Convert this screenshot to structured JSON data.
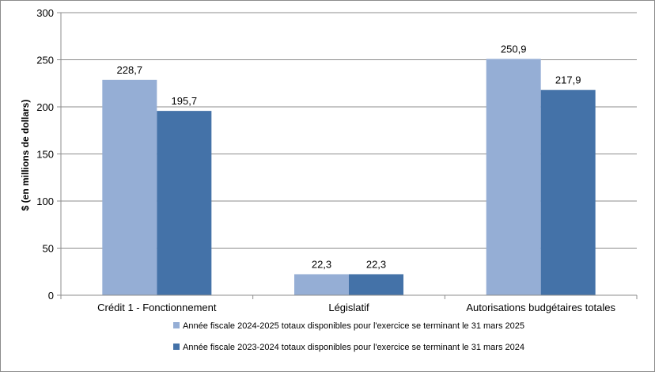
{
  "chart_data": {
    "type": "bar",
    "title": "",
    "xlabel": "",
    "ylabel": "$ (en millions de dollars)",
    "ylim": [
      0,
      300
    ],
    "yticks": [
      0,
      50,
      100,
      150,
      200,
      250,
      300
    ],
    "grid": true,
    "legend_position": "bottom",
    "categories": [
      "Crédit 1 - Fonctionnement",
      "Législatif",
      "Autorisations budgétaires totales"
    ],
    "series": [
      {
        "name": "Année fiscale 2024-2025 totaux disponibles pour l'exercice se terminant le 31 mars 2025",
        "color": "#95AED5",
        "values": [
          228.7,
          22.3,
          250.9
        ],
        "labels": [
          "228,7",
          "22,3",
          "250,9"
        ]
      },
      {
        "name": "Année fiscale 2023-2024 totaux disponibles pour l'exercice se terminant le 31 mars 2024",
        "color": "#4472A8",
        "values": [
          195.7,
          22.3,
          217.9
        ],
        "labels": [
          "195,7",
          "22,3",
          "217,9"
        ]
      }
    ]
  }
}
